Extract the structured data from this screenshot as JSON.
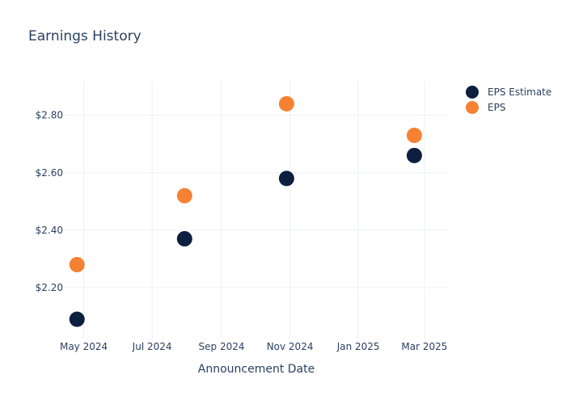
{
  "chart_data": {
    "type": "scatter",
    "title": "Earnings History",
    "xlabel": "Announcement Date",
    "ylabel": "",
    "x_ticks": [
      "May 2024",
      "Jul 2024",
      "Sep 2024",
      "Nov 2024",
      "Jan 2025",
      "Mar 2025"
    ],
    "x_tick_dates": [
      "2024-05-01",
      "2024-07-01",
      "2024-09-01",
      "2024-11-01",
      "2025-01-01",
      "2025-03-01"
    ],
    "xlim": [
      "2024-04-14",
      "2025-03-22"
    ],
    "y_ticks": [
      "$2.20",
      "$2.40",
      "$2.60",
      "$2.80"
    ],
    "y_tick_values": [
      2.2,
      2.4,
      2.6,
      2.8
    ],
    "ylim": [
      2.02,
      2.92
    ],
    "grid": true,
    "legend_position": "top-right",
    "x": [
      "2024-04-25",
      "2024-07-30",
      "2024-10-29",
      "2025-02-20"
    ],
    "series": [
      {
        "name": "EPS Estimate",
        "color": "#0d1f3f",
        "values": [
          2.09,
          2.37,
          2.58,
          2.66
        ]
      },
      {
        "name": "EPS",
        "color": "#f58233",
        "values": [
          2.28,
          2.52,
          2.84,
          2.73
        ]
      }
    ]
  }
}
